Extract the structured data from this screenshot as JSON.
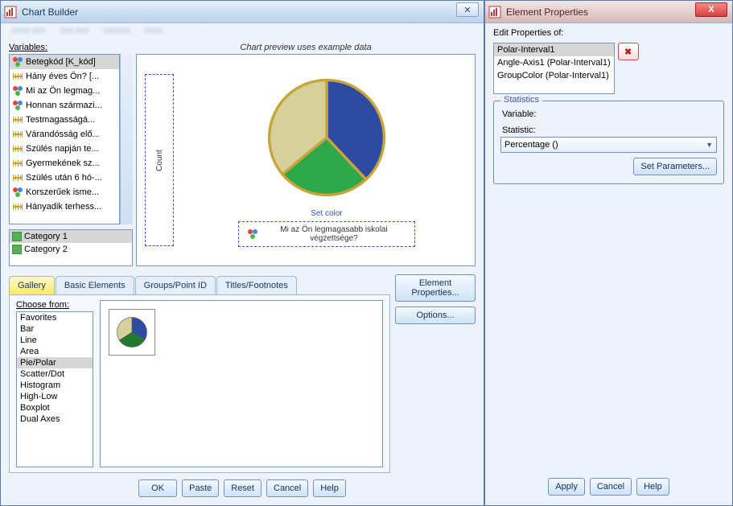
{
  "chartBuilder": {
    "title": "Chart Builder",
    "menu_blur": [
      "xxxx xxx",
      "xxx xxx",
      "xxxxxx",
      "xxxx"
    ],
    "variablesLabel": "Variables:",
    "variables": [
      {
        "icon": "nominal",
        "label": "Betegkód [K_kód]",
        "selected": true
      },
      {
        "icon": "scale",
        "label": "Hány éves Ön? [..."
      },
      {
        "icon": "nominal",
        "label": "Mi az Ön legmag..."
      },
      {
        "icon": "nominal",
        "label": "Honnan származi..."
      },
      {
        "icon": "scale",
        "label": "Testmagasságá..."
      },
      {
        "icon": "scale",
        "label": "Várandósság elő..."
      },
      {
        "icon": "scale",
        "label": "Szülés napján te..."
      },
      {
        "icon": "scale",
        "label": "Gyermekének sz..."
      },
      {
        "icon": "scale",
        "label": "Szülés után 6 hó-..."
      },
      {
        "icon": "nominal",
        "label": "Korszerűek isme..."
      },
      {
        "icon": "scale",
        "label": "Hányadik terhess..."
      }
    ],
    "categories": [
      {
        "label": "Category 1",
        "selected": true
      },
      {
        "label": "Category 2"
      }
    ],
    "previewHint": "Chart preview uses example data",
    "countAxis": "Count",
    "setColor": "Set color",
    "droppedVar": "Mi az Ön legmagasabb iskolai végzettsége?",
    "pie": {
      "type": "pie",
      "slices": [
        {
          "value": 38,
          "color": "#2e4aa1"
        },
        {
          "value": 26,
          "color": "#2ea84a"
        },
        {
          "value": 36,
          "color": "#d8d09a"
        }
      ],
      "stroke": "#c7a53a",
      "stroke_width": 2,
      "background": "#ffffff",
      "start_angle_deg": -90
    },
    "tabs": [
      "Gallery",
      "Basic Elements",
      "Groups/Point ID",
      "Titles/Footnotes"
    ],
    "activeTab": 0,
    "chooseFrom": "Choose from:",
    "galleryTypes": [
      "Favorites",
      "Bar",
      "Line",
      "Area",
      "Pie/Polar",
      "Scatter/Dot",
      "Histogram",
      "High-Low",
      "Boxplot",
      "Dual Axes"
    ],
    "gallerySelected": "Pie/Polar",
    "thumb_pie": {
      "slices": [
        {
          "value": 33,
          "color": "#2e4aa1"
        },
        {
          "value": 33,
          "color": "#1f7a2f"
        },
        {
          "value": 34,
          "color": "#d8d09a"
        }
      ],
      "stroke": "#555555"
    },
    "sideButtons": {
      "elementProps": "Element Properties...",
      "options": "Options..."
    },
    "footer": {
      "ok": "OK",
      "paste": "Paste",
      "reset": "Reset",
      "cancel": "Cancel",
      "help": "Help"
    }
  },
  "elementProps": {
    "title": "Element Properties",
    "editOf": "Edit Properties of:",
    "elements": [
      {
        "label": "Polar-Interval1",
        "selected": true
      },
      {
        "label": "Angle-Axis1 (Polar-Interval1)"
      },
      {
        "label": "GroupColor (Polar-Interval1)"
      }
    ],
    "statistics": {
      "legend": "Statistics",
      "variableLabel": "Variable:",
      "statisticLabel": "Statistic:",
      "statisticValue": "Percentage ()",
      "setParams": "Set Parameters..."
    },
    "footer": {
      "apply": "Apply",
      "cancel": "Cancel",
      "help": "Help"
    },
    "close_glyph": "X"
  },
  "colors": {
    "win_border": "#5a7ca8",
    "panel_bg": "#eef3fb"
  }
}
